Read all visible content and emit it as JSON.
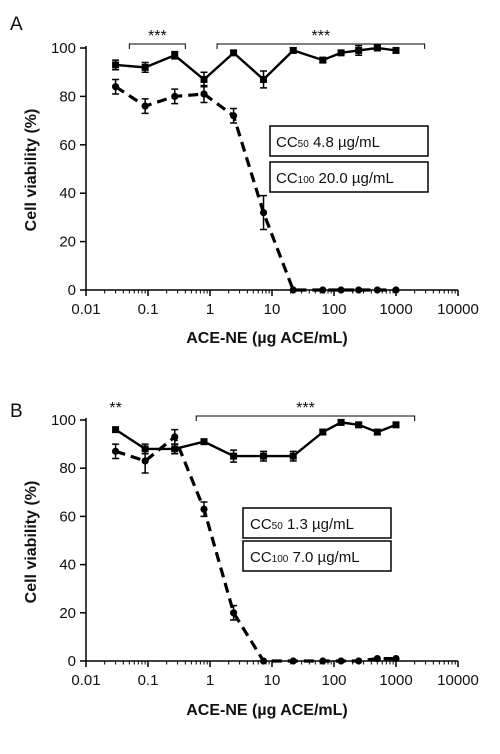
{
  "chart_data": [
    {
      "type": "line",
      "panel": "A",
      "xlabel": "ACE-NE (µg ACE/mL)",
      "ylabel": "Cell viability (%)",
      "xscale": "log",
      "xlim": [
        0.01,
        10000
      ],
      "ylim": [
        0,
        100
      ],
      "x_ticks": [
        "0.01",
        "0.1",
        "1",
        "10",
        "100",
        "1000",
        "10000"
      ],
      "y_ticks": [
        "0",
        "20",
        "40",
        "60",
        "80",
        "100"
      ],
      "series": [
        {
          "style": "solid",
          "marker": "square",
          "points": [
            [
              0.03,
              93,
              2
            ],
            [
              0.09,
              92,
              2
            ],
            [
              0.27,
              97,
              1.5
            ],
            [
              0.8,
              87,
              3
            ],
            [
              2.4,
              98,
              1
            ],
            [
              7.3,
              87,
              3.5
            ],
            [
              22,
              99,
              1
            ],
            [
              66,
              95,
              1
            ],
            [
              130,
              98,
              1
            ],
            [
              250,
              99,
              2
            ],
            [
              500,
              100,
              1
            ],
            [
              1000,
              99,
              1
            ]
          ]
        },
        {
          "style": "dashed",
          "marker": "circle",
          "points": [
            [
              0.03,
              84,
              3
            ],
            [
              0.09,
              76,
              3
            ],
            [
              0.27,
              80,
              3
            ],
            [
              0.8,
              81,
              3.5
            ],
            [
              2.4,
              72,
              3
            ],
            [
              7.3,
              32,
              7
            ],
            [
              22,
              0,
              0.5
            ],
            [
              66,
              0,
              0.5
            ],
            [
              130,
              0,
              0.5
            ],
            [
              250,
              0,
              0.5
            ],
            [
              500,
              0,
              0.5
            ],
            [
              1000,
              0,
              0.5
            ]
          ]
        }
      ],
      "brackets": [
        {
          "label": "***",
          "from": 0.05,
          "to": 0.4
        },
        {
          "label": "***",
          "from": 1.3,
          "to": 2900
        }
      ],
      "annotations": [
        {
          "sub": "50",
          "text": " 4.8 µg/mL"
        },
        {
          "sub": "100",
          "text": " 20.0 µg/mL"
        }
      ]
    },
    {
      "type": "line",
      "panel": "B",
      "xlabel": "ACE-NE (µg ACE/mL)",
      "ylabel": "Cell viability (%)",
      "xscale": "log",
      "xlim": [
        0.01,
        10000
      ],
      "ylim": [
        0,
        100
      ],
      "x_ticks": [
        "0.01",
        "0.1",
        "1",
        "10",
        "100",
        "1000",
        "10000"
      ],
      "y_ticks": [
        "0",
        "20",
        "40",
        "60",
        "80",
        "100"
      ],
      "series": [
        {
          "style": "solid",
          "marker": "square",
          "points": [
            [
              0.03,
              96,
              1
            ],
            [
              0.09,
              88,
              2
            ],
            [
              0.27,
              88,
              2
            ],
            [
              0.8,
              91,
              1
            ],
            [
              2.4,
              85,
              2.5
            ],
            [
              7.3,
              85,
              2
            ],
            [
              22,
              85,
              2
            ],
            [
              66,
              95,
              1
            ],
            [
              130,
              99,
              1
            ],
            [
              250,
              98,
              1
            ],
            [
              500,
              95,
              1
            ],
            [
              1000,
              98,
              1
            ]
          ]
        },
        {
          "style": "dashed",
          "marker": "circle",
          "points": [
            [
              0.03,
              87,
              3
            ],
            [
              0.09,
              83,
              5
            ],
            [
              0.27,
              93,
              3
            ],
            [
              0.8,
              63,
              3
            ],
            [
              2.4,
              20,
              3
            ],
            [
              7.3,
              0,
              0.5
            ],
            [
              22,
              0,
              0.5
            ],
            [
              66,
              0,
              0.5
            ],
            [
              130,
              0,
              0.5
            ],
            [
              250,
              0,
              0.5
            ],
            [
              500,
              1,
              0.5
            ],
            [
              1000,
              1,
              0.5
            ]
          ]
        }
      ],
      "sig_label": {
        "label": "**",
        "x": 0.03
      },
      "brackets": [
        {
          "label": "***",
          "from": 0.6,
          "to": 2000
        }
      ],
      "annotations": [
        {
          "sub": "50",
          "text": " 1.3 µg/mL"
        },
        {
          "sub": "100",
          "text": " 7.0 µg/mL"
        }
      ]
    }
  ],
  "cc_prefix": "CC"
}
